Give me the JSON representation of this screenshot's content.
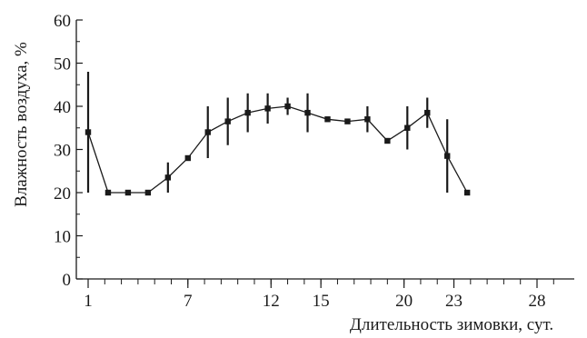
{
  "chart_data": {
    "type": "line",
    "xlabel": "Длительность зимовки, сут.",
    "ylabel": "Влажность воздуха, %",
    "ylim": [
      0,
      60
    ],
    "xlim": [
      0.9,
      29.6
    ],
    "y_ticks": [
      0,
      10,
      20,
      30,
      40,
      50,
      60
    ],
    "x_ticks": [
      1,
      7,
      12,
      15,
      20,
      23,
      28
    ],
    "x_tick_labels": [
      "1",
      "7",
      "12",
      "15",
      "20",
      "23",
      "28"
    ],
    "grid": false,
    "legend": "none",
    "line_color": "#1a1a1a",
    "series": [
      {
        "x": [
          1,
          2.2,
          3.4,
          4.6,
          5.8,
          7.0,
          8.2,
          9.4,
          10.6,
          11.8,
          13.0,
          14.2,
          15.4,
          16.6,
          17.8,
          19.0,
          20.2,
          21.4,
          22.6,
          23.8,
          25.0,
          26.2,
          27.4
        ],
        "values": [
          34,
          20,
          20,
          20,
          23.5,
          28,
          34,
          36.5,
          38.5,
          39.5,
          40,
          38.5,
          37,
          36.5,
          37,
          32,
          35,
          38.5,
          28.5,
          20,
          null,
          null,
          null
        ],
        "err_low": [
          20,
          20,
          20,
          20,
          20,
          28,
          28,
          31,
          34,
          36,
          38,
          34,
          36.5,
          36.5,
          34,
          32,
          30,
          35,
          20,
          20,
          null,
          null,
          null
        ],
        "err_high": [
          48,
          20,
          20,
          20,
          27,
          28,
          40,
          42,
          43,
          43,
          42,
          43,
          37.5,
          36.5,
          40,
          32,
          40,
          42,
          37,
          20,
          null,
          null,
          null
        ]
      }
    ]
  }
}
